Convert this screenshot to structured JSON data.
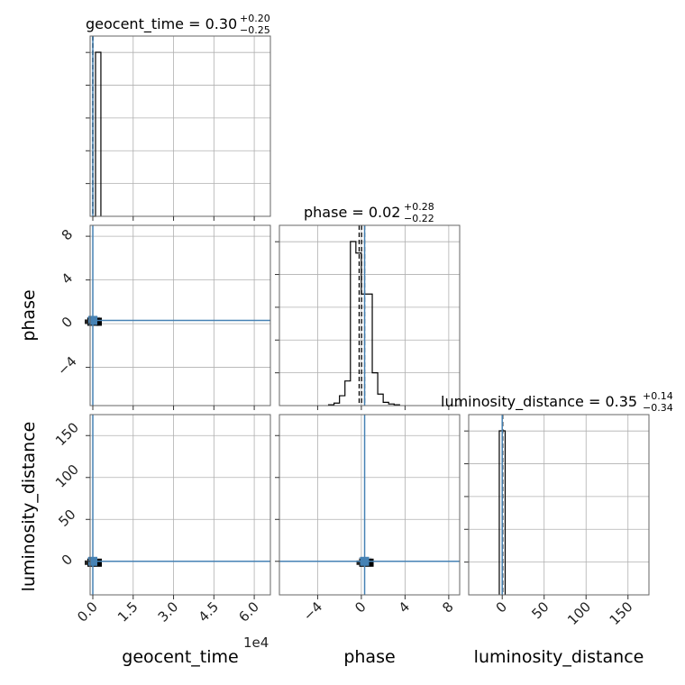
{
  "colors": {
    "truth": "#4682b4",
    "hist": "#000000",
    "grid": "#b0b0b0",
    "sample_points": "#9bb0c8"
  },
  "chart_data": {
    "type": "corner",
    "parameters": [
      "geocent_time",
      "phase",
      "luminosity_distance"
    ],
    "titles": {
      "geocent_time": {
        "text": "geocent_time = 0.30",
        "plus": "+0.20",
        "minus": "−0.25"
      },
      "phase": {
        "text": "phase = 0.02",
        "plus": "+0.28",
        "minus": "−0.22"
      },
      "luminosity_distance": {
        "text": "luminosity_distance = 0.35",
        "plus": "+0.14",
        "minus": "−0.34"
      }
    },
    "truths": {
      "geocent_time": 0.0,
      "phase": 0.3,
      "luminosity_distance": 0.0
    },
    "axes": {
      "geocent_time": {
        "range": [
          -1000,
          66000
        ],
        "ticks": [
          0,
          15000,
          30000,
          45000,
          60000
        ],
        "tick_labels": [
          "0.0",
          "1.5",
          "3.0",
          "4.5",
          "6.0"
        ],
        "offset_text": "1e4"
      },
      "phase": {
        "range": [
          -7.5,
          9
        ],
        "ticks": [
          -4,
          0,
          4,
          8
        ],
        "tick_labels": [
          "−4",
          "0",
          "4",
          "8"
        ]
      },
      "luminosity_distance": {
        "range": [
          -40,
          175
        ],
        "ticks": [
          0,
          50,
          100,
          150
        ],
        "tick_labels": [
          "0",
          "50",
          "100",
          "150"
        ]
      }
    },
    "histograms": {
      "geocent_time": {
        "edges": [
          0,
          1000,
          2000,
          3000
        ],
        "counts": [
          0,
          1,
          1
        ]
      },
      "phase": {
        "edges": [
          -3.0,
          -2.5,
          -2.0,
          -1.5,
          -1.0,
          -0.5,
          0.0,
          0.5,
          1.0,
          1.5,
          2.0,
          2.5,
          3.0,
          3.5
        ],
        "counts": [
          0.005,
          0.015,
          0.06,
          0.15,
          1.0,
          0.93,
          0.68,
          0.68,
          0.2,
          0.07,
          0.02,
          0.01,
          0.005
        ]
      },
      "luminosity_distance": {
        "edges": [
          -3.5,
          0,
          3.5
        ],
        "counts": [
          1,
          1
        ]
      }
    },
    "quantile_lines": {
      "geocent_time": [
        0.05,
        0.3,
        0.5
      ],
      "phase": [
        -0.2,
        0.02,
        0.3
      ],
      "luminosity_distance": [
        0.01,
        0.35,
        0.49
      ]
    }
  }
}
